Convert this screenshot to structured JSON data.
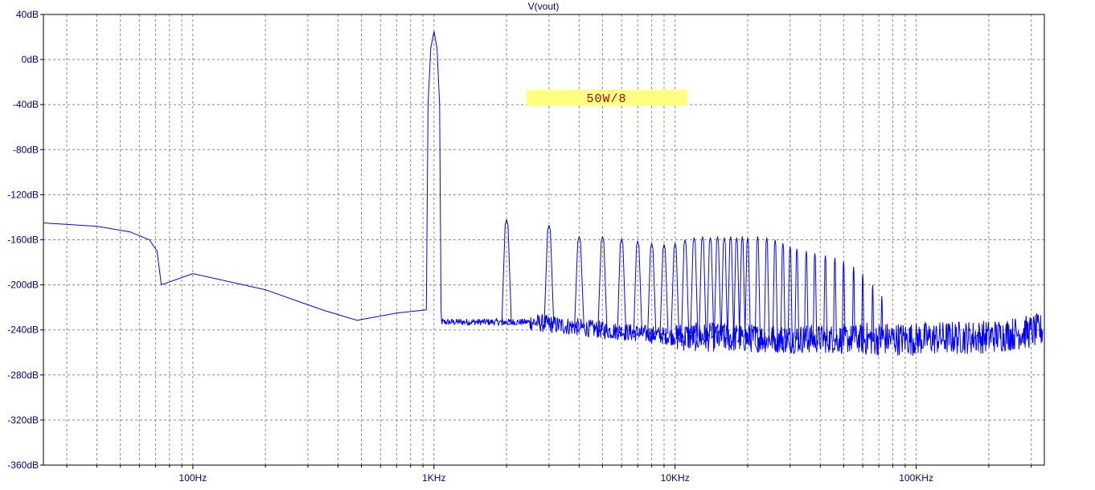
{
  "chart_data": {
    "type": "line",
    "title": "V(vout)",
    "x_scale": "log",
    "xlim_hz": [
      24,
      340000
    ],
    "ylim_db": [
      -360,
      40
    ],
    "y_ticks": [
      {
        "value": 40,
        "label": "40dB"
      },
      {
        "value": 0,
        "label": "0dB"
      },
      {
        "value": -40,
        "label": "-40dB"
      },
      {
        "value": -80,
        "label": "-80dB"
      },
      {
        "value": -120,
        "label": "-120dB"
      },
      {
        "value": -160,
        "label": "-160dB"
      },
      {
        "value": -200,
        "label": "-200dB"
      },
      {
        "value": -240,
        "label": "-240dB"
      },
      {
        "value": -280,
        "label": "-280dB"
      },
      {
        "value": -320,
        "label": "-320dB"
      },
      {
        "value": -360,
        "label": "-360dB"
      }
    ],
    "x_ticks": [
      {
        "value": 100,
        "label": "100Hz"
      },
      {
        "value": 1000,
        "label": "1KHz"
      },
      {
        "value": 10000,
        "label": "10KHz"
      },
      {
        "value": 100000,
        "label": "100KHz"
      }
    ],
    "grid": true,
    "annotation": {
      "text": "50W/8",
      "background": "#ffff80",
      "color": "#b00000",
      "x_hz": 5200,
      "y_db": -34
    },
    "series": [
      {
        "color": "#0000ff",
        "fundamental": {
          "x": 1000,
          "y": 25
        },
        "low_freq_curve": [
          {
            "x": 24,
            "y": -145
          },
          {
            "x": 40,
            "y": -148
          },
          {
            "x": 55,
            "y": -153
          },
          {
            "x": 66,
            "y": -160
          },
          {
            "x": 71,
            "y": -170
          },
          {
            "x": 74,
            "y": -200
          },
          {
            "x": 100,
            "y": -190
          },
          {
            "x": 200,
            "y": -205
          },
          {
            "x": 350,
            "y": -222
          },
          {
            "x": 480,
            "y": -232
          },
          {
            "x": 700,
            "y": -227
          },
          {
            "x": 920,
            "y": -223
          }
        ],
        "harmonic_peaks": [
          {
            "x": 2000,
            "y": -142
          },
          {
            "x": 3000,
            "y": -147
          },
          {
            "x": 4000,
            "y": -157
          },
          {
            "x": 5000,
            "y": -157
          },
          {
            "x": 6000,
            "y": -159
          },
          {
            "x": 7000,
            "y": -161
          },
          {
            "x": 8000,
            "y": -163
          },
          {
            "x": 9000,
            "y": -164
          },
          {
            "x": 10000,
            "y": -163
          },
          {
            "x": 11000,
            "y": -160
          },
          {
            "x": 12000,
            "y": -158
          },
          {
            "x": 13000,
            "y": -157
          },
          {
            "x": 14000,
            "y": -158
          },
          {
            "x": 15000,
            "y": -157
          },
          {
            "x": 16000,
            "y": -158
          },
          {
            "x": 17000,
            "y": -157
          },
          {
            "x": 18000,
            "y": -158
          },
          {
            "x": 19000,
            "y": -157
          },
          {
            "x": 20000,
            "y": -158
          },
          {
            "x": 22000,
            "y": -157
          },
          {
            "x": 24000,
            "y": -158
          },
          {
            "x": 26000,
            "y": -160
          },
          {
            "x": 28000,
            "y": -163
          },
          {
            "x": 30000,
            "y": -166
          },
          {
            "x": 32000,
            "y": -168
          },
          {
            "x": 35000,
            "y": -170
          },
          {
            "x": 38000,
            "y": -172
          },
          {
            "x": 42000,
            "y": -174
          },
          {
            "x": 46000,
            "y": -176
          },
          {
            "x": 50000,
            "y": -179
          },
          {
            "x": 55000,
            "y": -184
          },
          {
            "x": 60000,
            "y": -190
          },
          {
            "x": 66000,
            "y": -200
          },
          {
            "x": 72000,
            "y": -210
          }
        ],
        "noise_floor": [
          {
            "x": 2500,
            "y": -233
          },
          {
            "x": 5000,
            "y": -240
          },
          {
            "x": 10000,
            "y": -246
          },
          {
            "x": 30000,
            "y": -248
          },
          {
            "x": 100000,
            "y": -248
          },
          {
            "x": 200000,
            "y": -246
          },
          {
            "x": 340000,
            "y": -240
          }
        ]
      }
    ]
  }
}
